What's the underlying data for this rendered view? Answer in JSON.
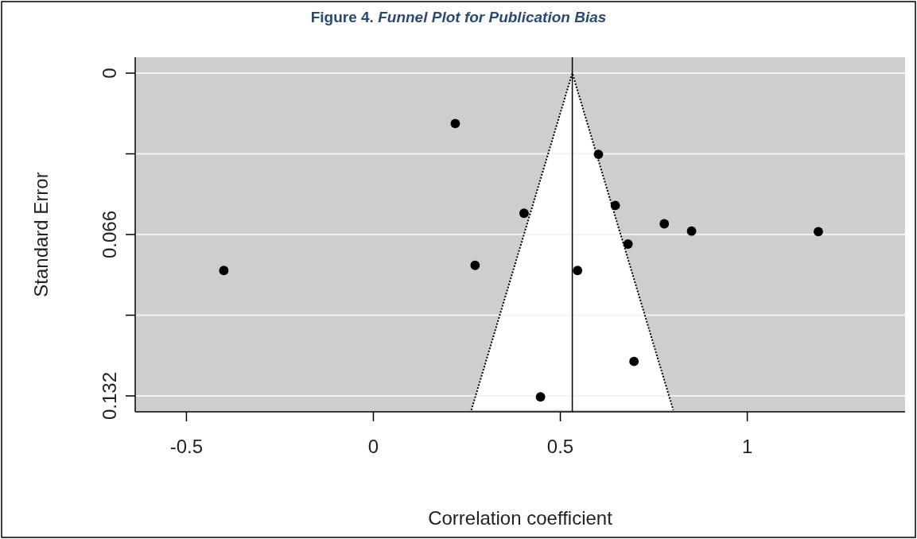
{
  "chart_data": {
    "type": "scatter",
    "title": "Figure 4. Funnel Plot for Publication Bias",
    "xlabel": "Correlation coefficient",
    "ylabel": "Standard Error",
    "series": [
      {
        "color": "#000000",
        "marker": "circle",
        "x": [
          0.219,
          0.403,
          -0.4,
          0.272,
          0.546,
          0.447,
          0.602,
          0.647,
          0.778,
          0.851,
          1.19,
          0.681,
          0.697
        ],
        "values": [
          0.0206,
          0.0573,
          0.0807,
          0.0786,
          0.0807,
          0.1324,
          0.0332,
          0.0541,
          0.0616,
          0.0646,
          0.0648,
          0.0699,
          0.1179
        ]
      },
      {
        "type": "line",
        "color": "#000000",
        "line_style": "dotted",
        "marker": "none",
        "x": [
          0.262,
          0.532,
          0.802
        ],
        "values": [
          0.1378,
          0,
          0.1378
        ]
      }
    ],
    "ref_lines": [
      {
        "axis": "x",
        "value": 0.532,
        "color": "#000000",
        "line_style": "solid"
      }
    ],
    "xlim": [
      -0.637,
      1.422
    ],
    "xticks": [
      -0.5,
      0,
      0.5,
      1
    ],
    "ylim": [
      0.1385,
      -0.0065
    ],
    "yticks": [
      0,
      {
        "value": 0.033,
        "label": null
      },
      0.066,
      {
        "value": 0.099,
        "label": null
      },
      0.132
    ],
    "grid": "y"
  }
}
